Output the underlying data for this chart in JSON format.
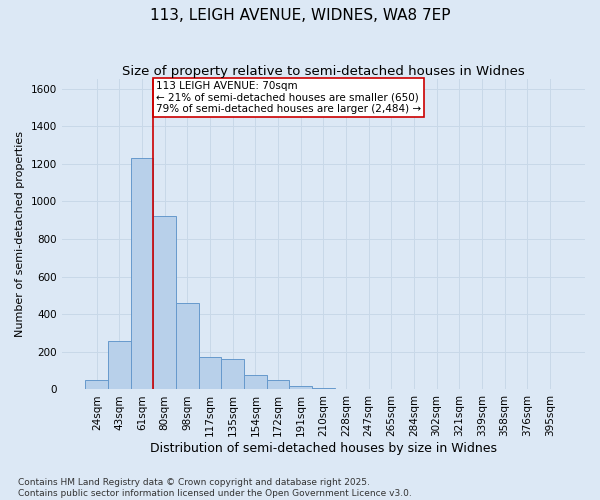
{
  "title": "113, LEIGH AVENUE, WIDNES, WA8 7EP",
  "subtitle": "Size of property relative to semi-detached houses in Widnes",
  "xlabel": "Distribution of semi-detached houses by size in Widnes",
  "ylabel": "Number of semi-detached properties",
  "bin_labels": [
    "24sqm",
    "43sqm",
    "61sqm",
    "80sqm",
    "98sqm",
    "117sqm",
    "135sqm",
    "154sqm",
    "172sqm",
    "191sqm",
    "210sqm",
    "228sqm",
    "247sqm",
    "265sqm",
    "284sqm",
    "302sqm",
    "321sqm",
    "339sqm",
    "358sqm",
    "376sqm",
    "395sqm"
  ],
  "bar_values": [
    50,
    260,
    1230,
    920,
    460,
    170,
    160,
    75,
    50,
    20,
    8,
    3,
    1,
    0,
    0,
    0,
    0,
    0,
    0,
    0,
    0
  ],
  "bar_color": "#b8d0ea",
  "bar_edge_color": "#6699cc",
  "grid_color": "#c8d8e8",
  "vline_x": 2.5,
  "vline_color": "#cc0000",
  "annotation_text": "113 LEIGH AVENUE: 70sqm\n← 21% of semi-detached houses are smaller (650)\n79% of semi-detached houses are larger (2,484) →",
  "annotation_box_facecolor": "#ffffff",
  "annotation_box_edgecolor": "#cc0000",
  "ylim": [
    0,
    1650
  ],
  "yticks": [
    0,
    200,
    400,
    600,
    800,
    1000,
    1200,
    1400,
    1600
  ],
  "footer_text": "Contains HM Land Registry data © Crown copyright and database right 2025.\nContains public sector information licensed under the Open Government Licence v3.0.",
  "background_color": "#dce8f5",
  "plot_bg_color": "#dce8f5",
  "title_fontsize": 11,
  "subtitle_fontsize": 9.5,
  "xlabel_fontsize": 9,
  "ylabel_fontsize": 8,
  "tick_fontsize": 7.5,
  "annotation_fontsize": 7.5,
  "footer_fontsize": 6.5
}
